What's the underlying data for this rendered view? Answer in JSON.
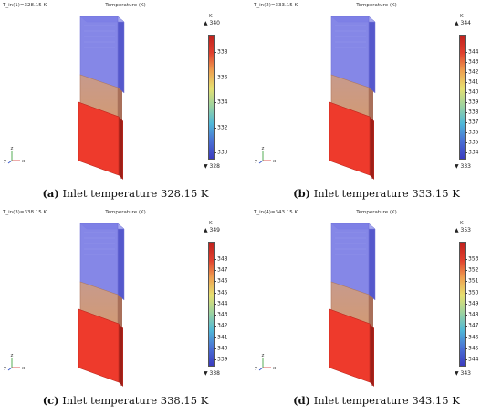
{
  "colorbar": {
    "gradient": [
      "#3b3bbf",
      "#4a6fd4",
      "#4fb8d8",
      "#9bd3a0",
      "#e6e070",
      "#eea050",
      "#e0402e",
      "#c0211d"
    ]
  },
  "panels": [
    {
      "parameter": "T_in(1)=328.15 K",
      "plot_title": "Temperature (K)",
      "unit": "K",
      "max_label": "▲ 340",
      "min_label": "▼ 328",
      "ticks": [
        "338",
        "336",
        "334",
        "332",
        "330"
      ],
      "caption_letter": "(a)",
      "caption_text": " Inlet temperature 328.15 K"
    },
    {
      "parameter": "T_in(2)=333.15 K",
      "plot_title": "Temperature (K)",
      "unit": "K",
      "max_label": "▲ 344",
      "min_label": "▼ 333",
      "ticks": [
        "344",
        "343",
        "342",
        "341",
        "340",
        "339",
        "338",
        "337",
        "336",
        "335",
        "334"
      ],
      "caption_letter": "(b)",
      "caption_text": " Inlet temperature 333.15 K"
    },
    {
      "parameter": "T_in(3)=338.15 K",
      "plot_title": "Temperature (K)",
      "unit": "K",
      "max_label": "▲ 349",
      "min_label": "▼ 338",
      "ticks": [
        "348",
        "347",
        "346",
        "345",
        "344",
        "343",
        "342",
        "341",
        "340",
        "339"
      ],
      "caption_letter": "(c)",
      "caption_text": " Inlet temperature 338.15 K"
    },
    {
      "parameter": "T_in(4)=343.15 K",
      "plot_title": "Temperature (K)",
      "unit": "K",
      "max_label": "▲ 353",
      "min_label": "▼ 343",
      "ticks": [
        "353",
        "352",
        "351",
        "350",
        "349",
        "348",
        "347",
        "346",
        "345",
        "344"
      ],
      "caption_letter": "(d)",
      "caption_text": " Inlet temperature 343.15 K"
    }
  ],
  "triad": {
    "z": "z",
    "y": "y",
    "x": "x"
  }
}
